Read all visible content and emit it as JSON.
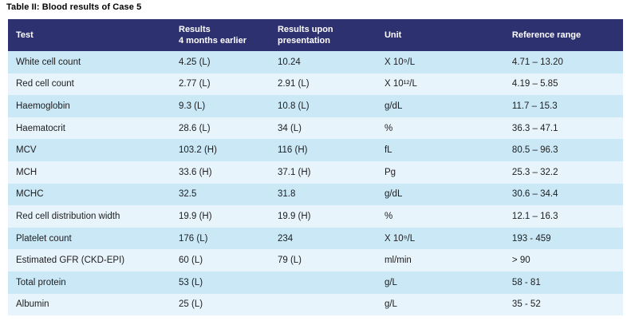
{
  "title": "Table II: Blood results of Case 5",
  "colors": {
    "header_bg": "#2e3170",
    "header_text": "#ffffff",
    "row_odd": "#cbe8f6",
    "row_even": "#e8f4fb",
    "body_text": "#1d1d1f",
    "title_text": "#000000",
    "page_bg": "#ffffff"
  },
  "table": {
    "columns": [
      {
        "label": "Test"
      },
      {
        "label": "Results\n4 months earlier"
      },
      {
        "label": "Results upon\npresentation"
      },
      {
        "label": "Unit"
      },
      {
        "label": "Reference range"
      }
    ],
    "rows": [
      {
        "test": "White cell count",
        "earlier": "4.25 (L)",
        "presentation": "10.24",
        "unit": "X 10⁹/L",
        "range": "4.71 – 13.20"
      },
      {
        "test": "Red cell count",
        "earlier": "2.77 (L)",
        "presentation": "2.91 (L)",
        "unit": "X 10¹²/L",
        "range": "4.19 – 5.85"
      },
      {
        "test": "Haemoglobin",
        "earlier": "9.3 (L)",
        "presentation": "10.8 (L)",
        "unit": "g/dL",
        "range": "11.7 – 15.3"
      },
      {
        "test": "Haematocrit",
        "earlier": "28.6 (L)",
        "presentation": "34 (L)",
        "unit": "%",
        "range": "36.3 – 47.1"
      },
      {
        "test": "MCV",
        "earlier": "103.2 (H)",
        "presentation": "116 (H)",
        "unit": "fL",
        "range": "80.5 – 96.3"
      },
      {
        "test": "MCH",
        "earlier": "33.6 (H)",
        "presentation": "37.1 (H)",
        "unit": "Pg",
        "range": "25.3 – 32.2"
      },
      {
        "test": "MCHC",
        "earlier": "32.5",
        "presentation": "31.8",
        "unit": "g/dL",
        "range": "30.6 – 34.4"
      },
      {
        "test": "Red cell distribution width",
        "earlier": "19.9 (H)",
        "presentation": "19.9 (H)",
        "unit": "%",
        "range": "12.1 – 16.3"
      },
      {
        "test": "Platelet count",
        "earlier": "176 (L)",
        "presentation": "234",
        "unit": "X 10⁹/L",
        "range": "193 - 459"
      },
      {
        "test": "Estimated GFR (CKD-EPI)",
        "earlier": "60 (L)",
        "presentation": "79 (L)",
        "unit": "ml/min",
        "range": "> 90"
      },
      {
        "test": "Total protein",
        "earlier": "53 (L)",
        "presentation": "",
        "unit": "g/L",
        "range": "58 - 81"
      },
      {
        "test": "Albumin",
        "earlier": "25 (L)",
        "presentation": "",
        "unit": "g/L",
        "range": "35 - 52"
      }
    ]
  }
}
